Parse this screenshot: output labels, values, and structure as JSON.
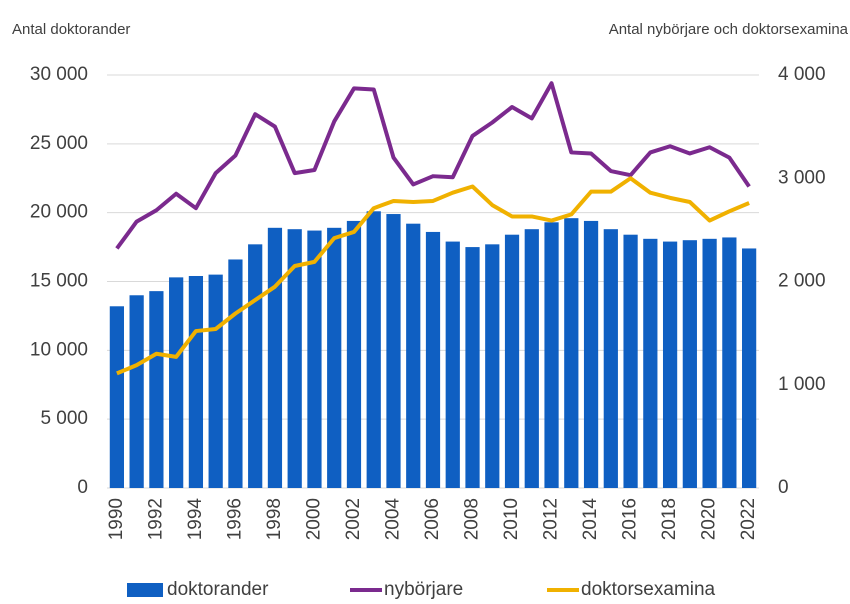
{
  "chart_data": {
    "type": "bar",
    "y_label": "Antal doktorander",
    "y2_label": "Antal nybörjare och doktorsexamina",
    "categories": [
      "1990",
      null,
      "1992",
      null,
      "1994",
      null,
      "1996",
      null,
      "1998",
      null,
      "2000",
      null,
      "2002",
      null,
      "2004",
      null,
      "2006",
      null,
      "2008",
      null,
      "2010",
      null,
      "2012",
      null,
      "2014",
      null,
      "2016",
      null,
      "2018",
      null,
      "2020",
      null,
      "2022"
    ],
    "series": [
      {
        "name": "doktorander",
        "type": "bar",
        "color": "#0f5fc2",
        "values": [
          13200,
          14000,
          14300,
          15300,
          15400,
          15500,
          16600,
          17700,
          18900,
          18800,
          18700,
          18900,
          19400,
          20100,
          19900,
          19200,
          18600,
          17900,
          17500,
          17700,
          18400,
          18800,
          19300,
          19600,
          19400,
          18800,
          18400,
          18100,
          17900,
          18000,
          18100,
          18200,
          17400
        ]
      },
      {
        "name": "nybörjare",
        "type": "line",
        "axis": "y2",
        "color": "#7b2a8e",
        "values": [
          2320,
          2580,
          2690,
          2850,
          2710,
          3050,
          3220,
          3620,
          3500,
          3050,
          3080,
          3550,
          3870,
          3860,
          3200,
          2940,
          3020,
          3010,
          3410,
          3540,
          3690,
          3580,
          3920,
          3250,
          3240,
          3070,
          3030,
          3250,
          3310,
          3240,
          3300,
          3200,
          2920
        ]
      },
      {
        "name": "doktorsexamina",
        "type": "line",
        "axis": "y2",
        "color": "#f0b100",
        "values": [
          1110,
          1190,
          1300,
          1270,
          1520,
          1540,
          1690,
          1820,
          1950,
          2150,
          2190,
          2420,
          2480,
          2710,
          2780,
          2770,
          2780,
          2860,
          2920,
          2740,
          2630,
          2630,
          2590,
          2650,
          2870,
          2870,
          3000,
          2860,
          2810,
          2770,
          2590,
          2680,
          2760
        ]
      }
    ],
    "ylim": [
      0,
      30000
    ],
    "yticks": [
      0,
      {
        "value": 5000,
        "label": "5 000"
      },
      {
        "value": 10000,
        "label": "10 000"
      },
      {
        "value": 15000,
        "label": "15 000"
      },
      {
        "value": 20000,
        "label": "20 000"
      },
      {
        "value": 25000,
        "label": "25 000"
      },
      {
        "value": 30000,
        "label": "30 000"
      }
    ],
    "y2lim": [
      0,
      4000
    ],
    "y2ticks": [
      0,
      {
        "value": 1000,
        "label": "1 000"
      },
      {
        "value": 2000,
        "label": "2 000"
      },
      {
        "value": 3000,
        "label": "3 000"
      },
      {
        "value": 4000,
        "label": "4 000"
      }
    ],
    "grid": true,
    "legend": "bottom"
  }
}
